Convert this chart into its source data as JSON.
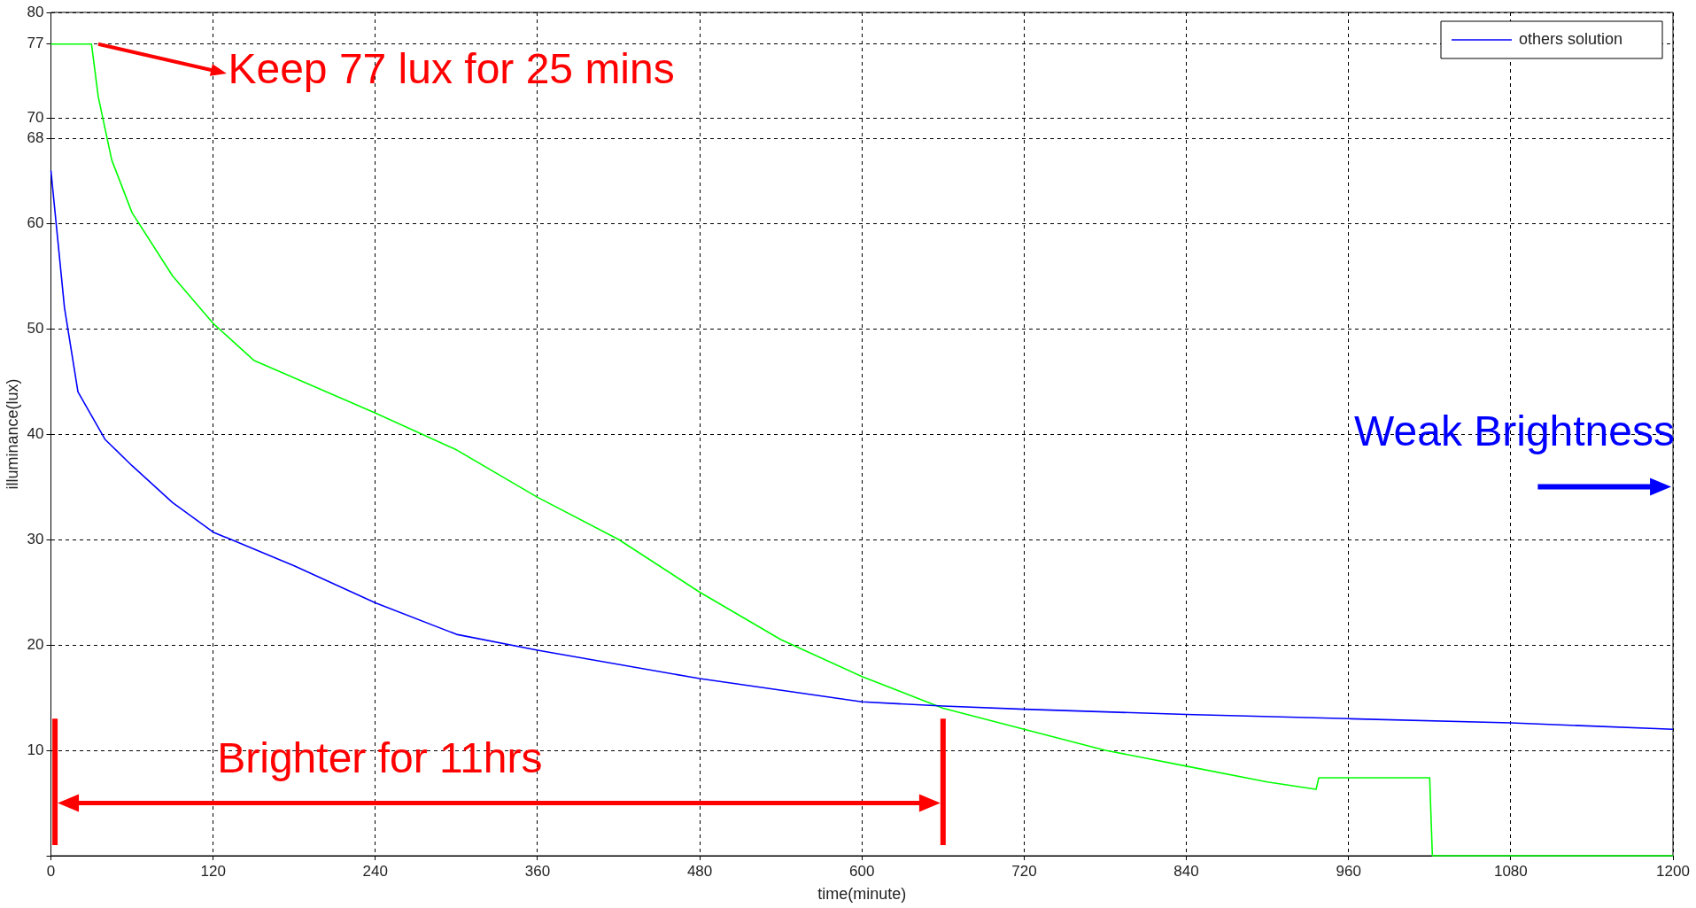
{
  "chart_data": {
    "type": "line",
    "xlabel": "time(minute)",
    "ylabel": "illuminance(lux)",
    "xlim": [
      0,
      1200
    ],
    "xticks": [
      0,
      120,
      240,
      360,
      480,
      600,
      720,
      840,
      960,
      1080,
      1200
    ],
    "ylim": [
      0,
      80
    ],
    "yticks": [
      {
        "value": 0,
        "label": null
      },
      10,
      20,
      30,
      40,
      50,
      60,
      68,
      70,
      77,
      80
    ],
    "grid": true,
    "legend": "top right",
    "line_style": "solid",
    "marker": "none",
    "series": [
      {
        "name": "others solution",
        "color": "#0000ff",
        "x": [
          0,
          10,
          20,
          40,
          60,
          90,
          120,
          180,
          240,
          300,
          360,
          480,
          600,
          660,
          720,
          840,
          960,
          1080,
          1200
        ],
        "values": [
          65,
          52,
          44,
          39.5,
          37,
          33.5,
          30.7,
          27.5,
          24,
          21,
          19.5,
          16.8,
          14.6,
          14.2,
          13.9,
          13.4,
          13,
          12.6,
          12
        ]
      },
      {
        "color": "#00ff00",
        "x": [
          0,
          30,
          35,
          45,
          60,
          90,
          120,
          150,
          240,
          300,
          360,
          420,
          480,
          540,
          600,
          660,
          720,
          780,
          840,
          900,
          936,
          938,
          1020,
          1022,
          1200
        ],
        "values": [
          77,
          77,
          72,
          66,
          61,
          55,
          50.5,
          47,
          42,
          38.5,
          34,
          30,
          25,
          20.5,
          17,
          14,
          12,
          10,
          8.5,
          7,
          6.3,
          7.4,
          7.4,
          0,
          0
        ]
      }
    ],
    "annotations": [
      "Keep 77 lux for 25 mins",
      "Brighter for 11hrs",
      "Weak Brightness"
    ]
  }
}
